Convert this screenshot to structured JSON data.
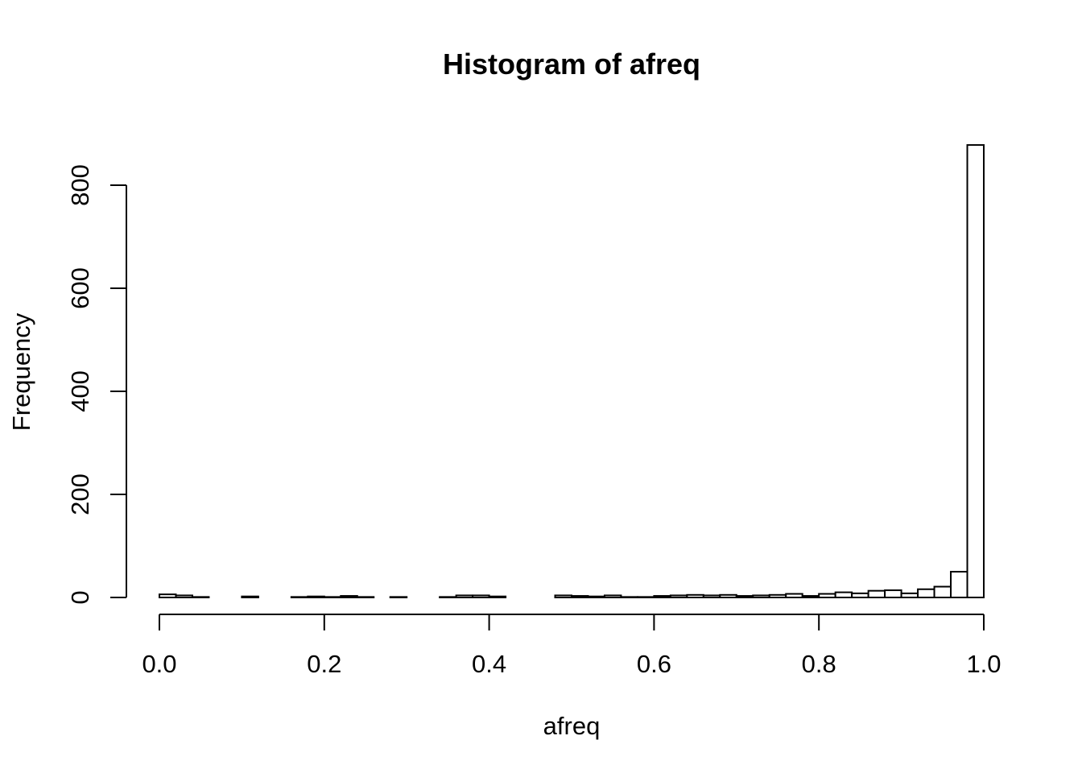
{
  "chart_data": {
    "type": "bar",
    "title": "Histogram of afreq",
    "xlabel": "afreq",
    "ylabel": "Frequency",
    "xlim": [
      0.0,
      1.0
    ],
    "ylim": [
      0,
      880
    ],
    "bin_width": 0.02,
    "x_ticks": [
      {
        "value": 0.0,
        "label": "0.0"
      },
      {
        "value": 0.2,
        "label": "0.2"
      },
      {
        "value": 0.4,
        "label": "0.4"
      },
      {
        "value": 0.6,
        "label": "0.6"
      },
      {
        "value": 0.8,
        "label": "0.8"
      },
      {
        "value": 1.0,
        "label": "1.0"
      }
    ],
    "y_ticks": [
      {
        "value": 0,
        "label": "0"
      },
      {
        "value": 200,
        "label": "200"
      },
      {
        "value": 400,
        "label": "400"
      },
      {
        "value": 600,
        "label": "600"
      },
      {
        "value": 800,
        "label": "800"
      }
    ],
    "bin_starts": [
      0.0,
      0.02,
      0.04,
      0.06,
      0.08,
      0.1,
      0.12,
      0.14,
      0.16,
      0.18,
      0.2,
      0.22,
      0.24,
      0.26,
      0.28,
      0.3,
      0.32,
      0.34,
      0.36,
      0.38,
      0.4,
      0.42,
      0.44,
      0.46,
      0.48,
      0.5,
      0.52,
      0.54,
      0.56,
      0.58,
      0.6,
      0.62,
      0.64,
      0.66,
      0.68,
      0.7,
      0.72,
      0.74,
      0.76,
      0.78,
      0.8,
      0.82,
      0.84,
      0.86,
      0.88,
      0.9,
      0.92,
      0.94,
      0.96,
      0.98
    ],
    "values": [
      6,
      4,
      1,
      0,
      0,
      2,
      0,
      0,
      1,
      2,
      1,
      3,
      1,
      0,
      1,
      0,
      0,
      1,
      4,
      4,
      2,
      0,
      0,
      0,
      4,
      3,
      2,
      4,
      1,
      1,
      3,
      4,
      5,
      4,
      5,
      3,
      4,
      5,
      7,
      3,
      7,
      10,
      8,
      13,
      14,
      8,
      16,
      21,
      50,
      878
    ]
  }
}
